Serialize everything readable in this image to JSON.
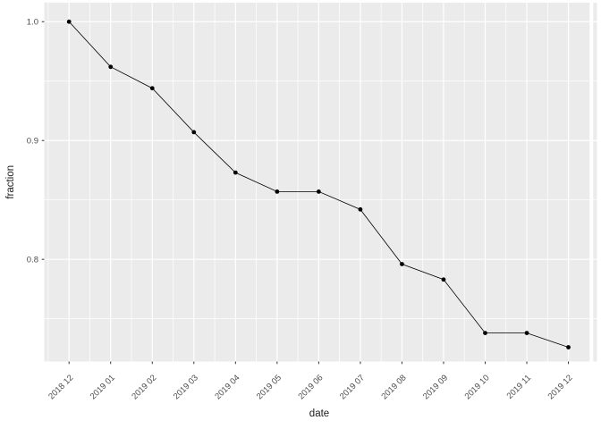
{
  "chart_data": {
    "type": "line",
    "title": "",
    "xlabel": "date",
    "ylabel": "fraction",
    "categories": [
      "2018 12",
      "2019 01",
      "2019 02",
      "2019 03",
      "2019 04",
      "2019 05",
      "2019 06",
      "2019 07",
      "2019 08",
      "2019 09",
      "2019 10",
      "2019 11",
      "2019 12"
    ],
    "series": [
      {
        "name": "fraction",
        "values": [
          1.0,
          0.962,
          0.944,
          0.907,
          0.873,
          0.857,
          0.857,
          0.842,
          0.796,
          0.783,
          0.738,
          0.738,
          0.726
        ]
      }
    ],
    "y_major_ticks": [
      0.8,
      0.9,
      1.0
    ],
    "y_minor_ticks": [
      0.75,
      0.85,
      0.95
    ],
    "y_tick_labels": [
      "0.8",
      "0.9",
      "1.0"
    ],
    "ylim": [
      0.714,
      1.016
    ],
    "x_tick_angle": 45,
    "grid": "major+minor",
    "legend": "none",
    "marker": "point",
    "style": {
      "background": "#ffffff",
      "panel_bg": "#ebebeb",
      "grid_color": "#ffffff",
      "tick_mark_color": "#333333",
      "tick_label_color": "#4d4d4d",
      "axis_title_color": "#1a1a1a",
      "line_color": "#000000",
      "point_color": "#000000"
    }
  }
}
